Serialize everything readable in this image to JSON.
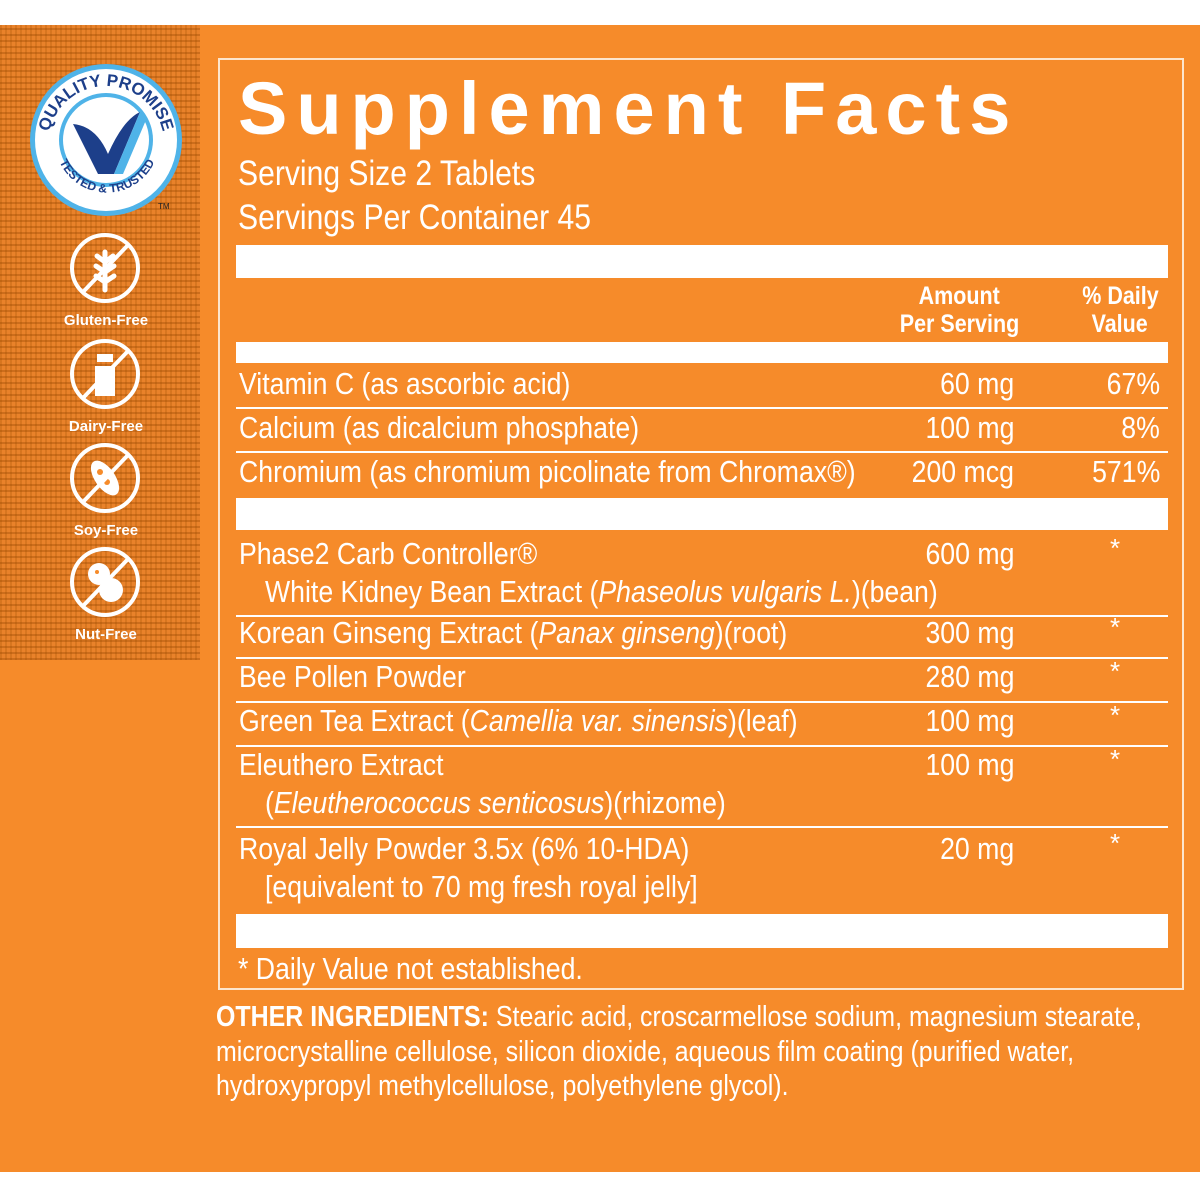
{
  "badges": {
    "quality_seal": {
      "top": "QUALITY PROMISE",
      "bottom": "TESTED & TRUSTED",
      "tm": "TM"
    },
    "items": [
      {
        "icon": "wheat-icon",
        "label": "Gluten-Free"
      },
      {
        "icon": "milk-bottle-icon",
        "label": "Dairy-Free"
      },
      {
        "icon": "soybean-icon",
        "label": "Soy-Free"
      },
      {
        "icon": "peanut-icon",
        "label": "Nut-Free"
      }
    ]
  },
  "facts": {
    "title": "Supplement Facts",
    "serving_size": "Serving Size 2 Tablets",
    "servings_per_container": "Servings Per Container 45",
    "header": {
      "amount_line1": "Amount",
      "amount_line2": "Per Serving",
      "dv_line1": "% Daily",
      "dv_line2": "Value"
    },
    "vitamins": [
      {
        "name": "Vitamin C (as ascorbic acid)",
        "amount": "60 mg",
        "dv": "67%"
      },
      {
        "name": "Calcium (as dicalcium phosphate)",
        "amount": "100 mg",
        "dv": "8%"
      },
      {
        "name": "Chromium (as chromium picolinate from Chromax®)",
        "amount": "200 mcg",
        "dv": "571%"
      }
    ],
    "blend": [
      {
        "name": "Phase2 Carb Controller®",
        "sub_pre": "White Kidney Bean Extract (",
        "sub_italic": "Phaseolus vulgaris L.",
        "sub_post": ")(bean)",
        "amount": "600 mg",
        "dv": "*"
      },
      {
        "name_pre": "Korean Ginseng Extract (",
        "name_italic": "Panax ginseng",
        "name_post": ")(root)",
        "amount": "300 mg",
        "dv": "*"
      },
      {
        "name": "Bee Pollen Powder",
        "amount": "280 mg",
        "dv": "*"
      },
      {
        "name_pre": "Green Tea Extract (",
        "name_italic": "Camellia var. sinensis",
        "name_post": ")(leaf)",
        "amount": "100 mg",
        "dv": "*"
      },
      {
        "name": "Eleuthero Extract",
        "sub_pre": "(",
        "sub_italic": "Eleutherococcus senticosus",
        "sub_post": ")(rhizome)",
        "amount": "100 mg",
        "dv": "*"
      },
      {
        "name": "Royal Jelly Powder 3.5x (6% 10-HDA)",
        "sub_pre": "[equivalent to 70 mg fresh royal jelly]",
        "amount": "20 mg",
        "dv": "*"
      }
    ],
    "footnote": "* Daily Value not established."
  },
  "other_ingredients": {
    "label": "OTHER INGREDIENTS:",
    "text": " Stearic acid, croscarmellose sodium, magnesium stearate, microcrystalline cellulose, silicon dioxide, aqueous film coating (purified water, hydroxypropyl methylcellulose, polyethylene glycol)."
  },
  "colors": {
    "background": "#f68b2a",
    "seal_blue": "#1d3f8a",
    "seal_light_blue": "#4fb3e8",
    "text": "#ffffff"
  }
}
